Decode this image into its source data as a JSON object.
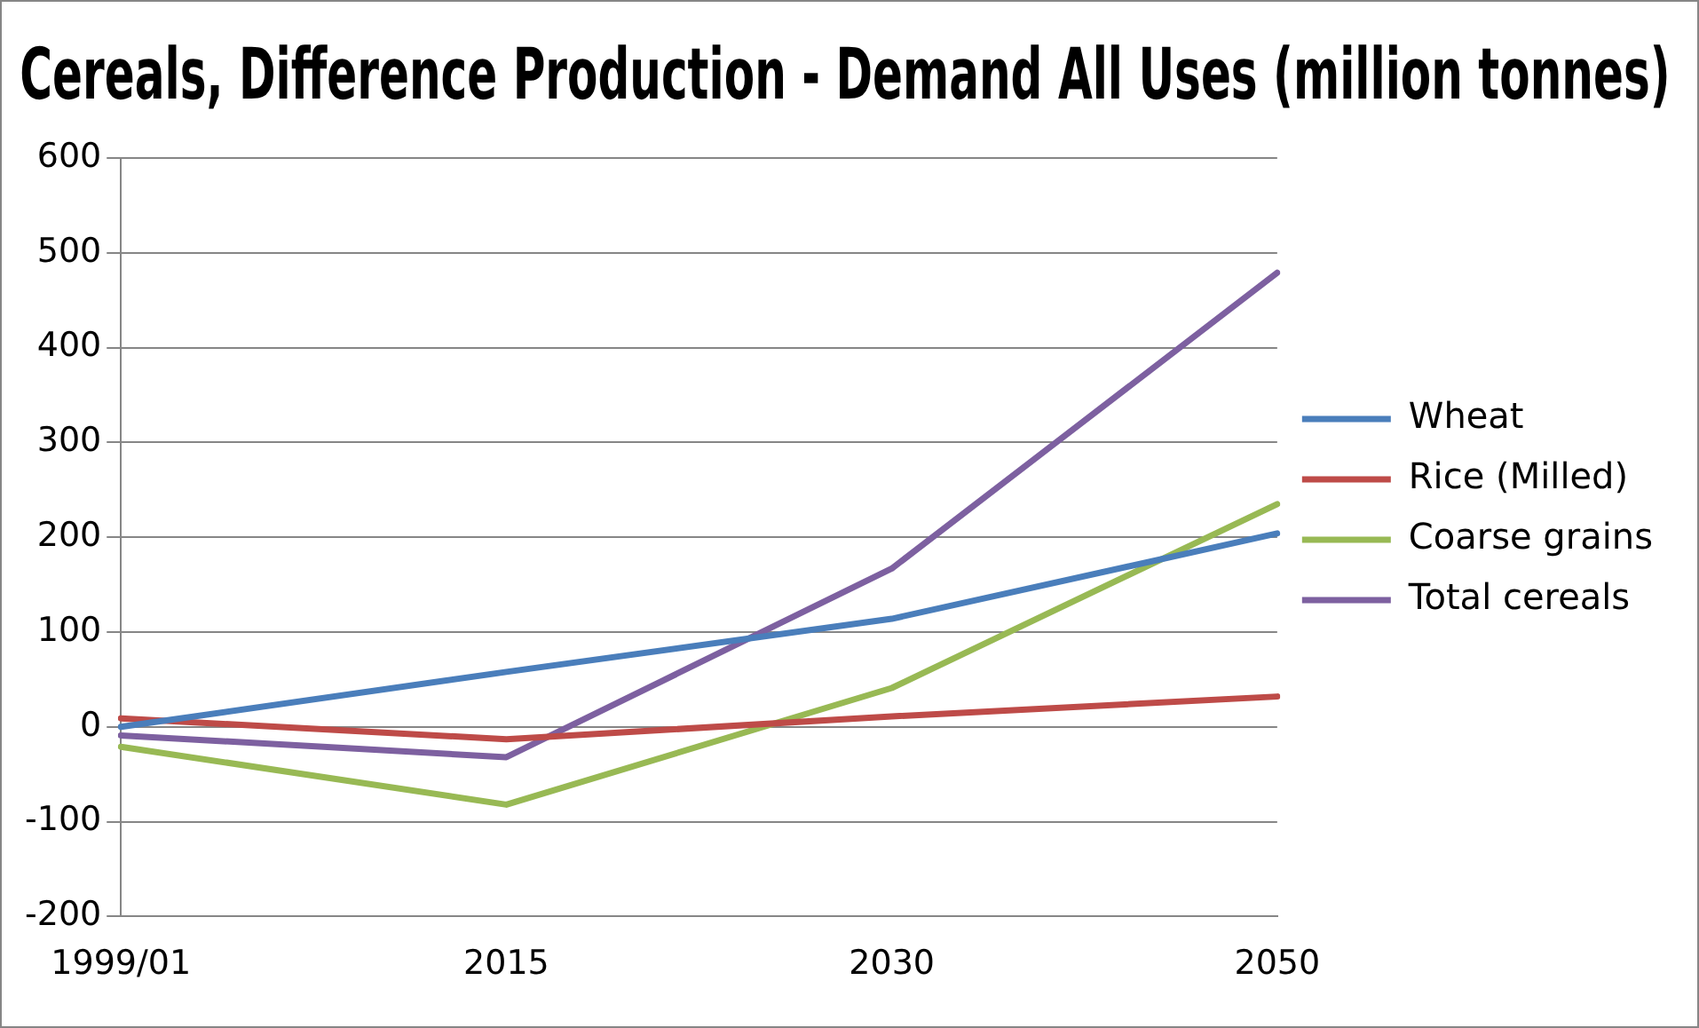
{
  "chart_data": {
    "type": "line",
    "title": "Cereals, Difference Production - Demand All Uses (million tonnes)",
    "categories": [
      "1999/01",
      "2015",
      "2030",
      "2050"
    ],
    "series": [
      {
        "name": "Wheat",
        "color": "#4a7ebb",
        "values": [
          0,
          58,
          114,
          204
        ]
      },
      {
        "name": "Rice (Milled)",
        "color": "#be4b48",
        "values": [
          9,
          -13,
          11,
          32
        ]
      },
      {
        "name": "Coarse grains",
        "color": "#98b954",
        "values": [
          -21,
          -82,
          41,
          235
        ]
      },
      {
        "name": "Total cereals",
        "color": "#7d60a0",
        "values": [
          -9,
          -32,
          167,
          479
        ]
      }
    ],
    "ylim": [
      -200,
      600
    ],
    "yticks": [
      -200,
      -100,
      0,
      100,
      200,
      300,
      400,
      500,
      600
    ],
    "grid": "y",
    "legend": "right",
    "marker": "none",
    "line_style": "solid"
  }
}
